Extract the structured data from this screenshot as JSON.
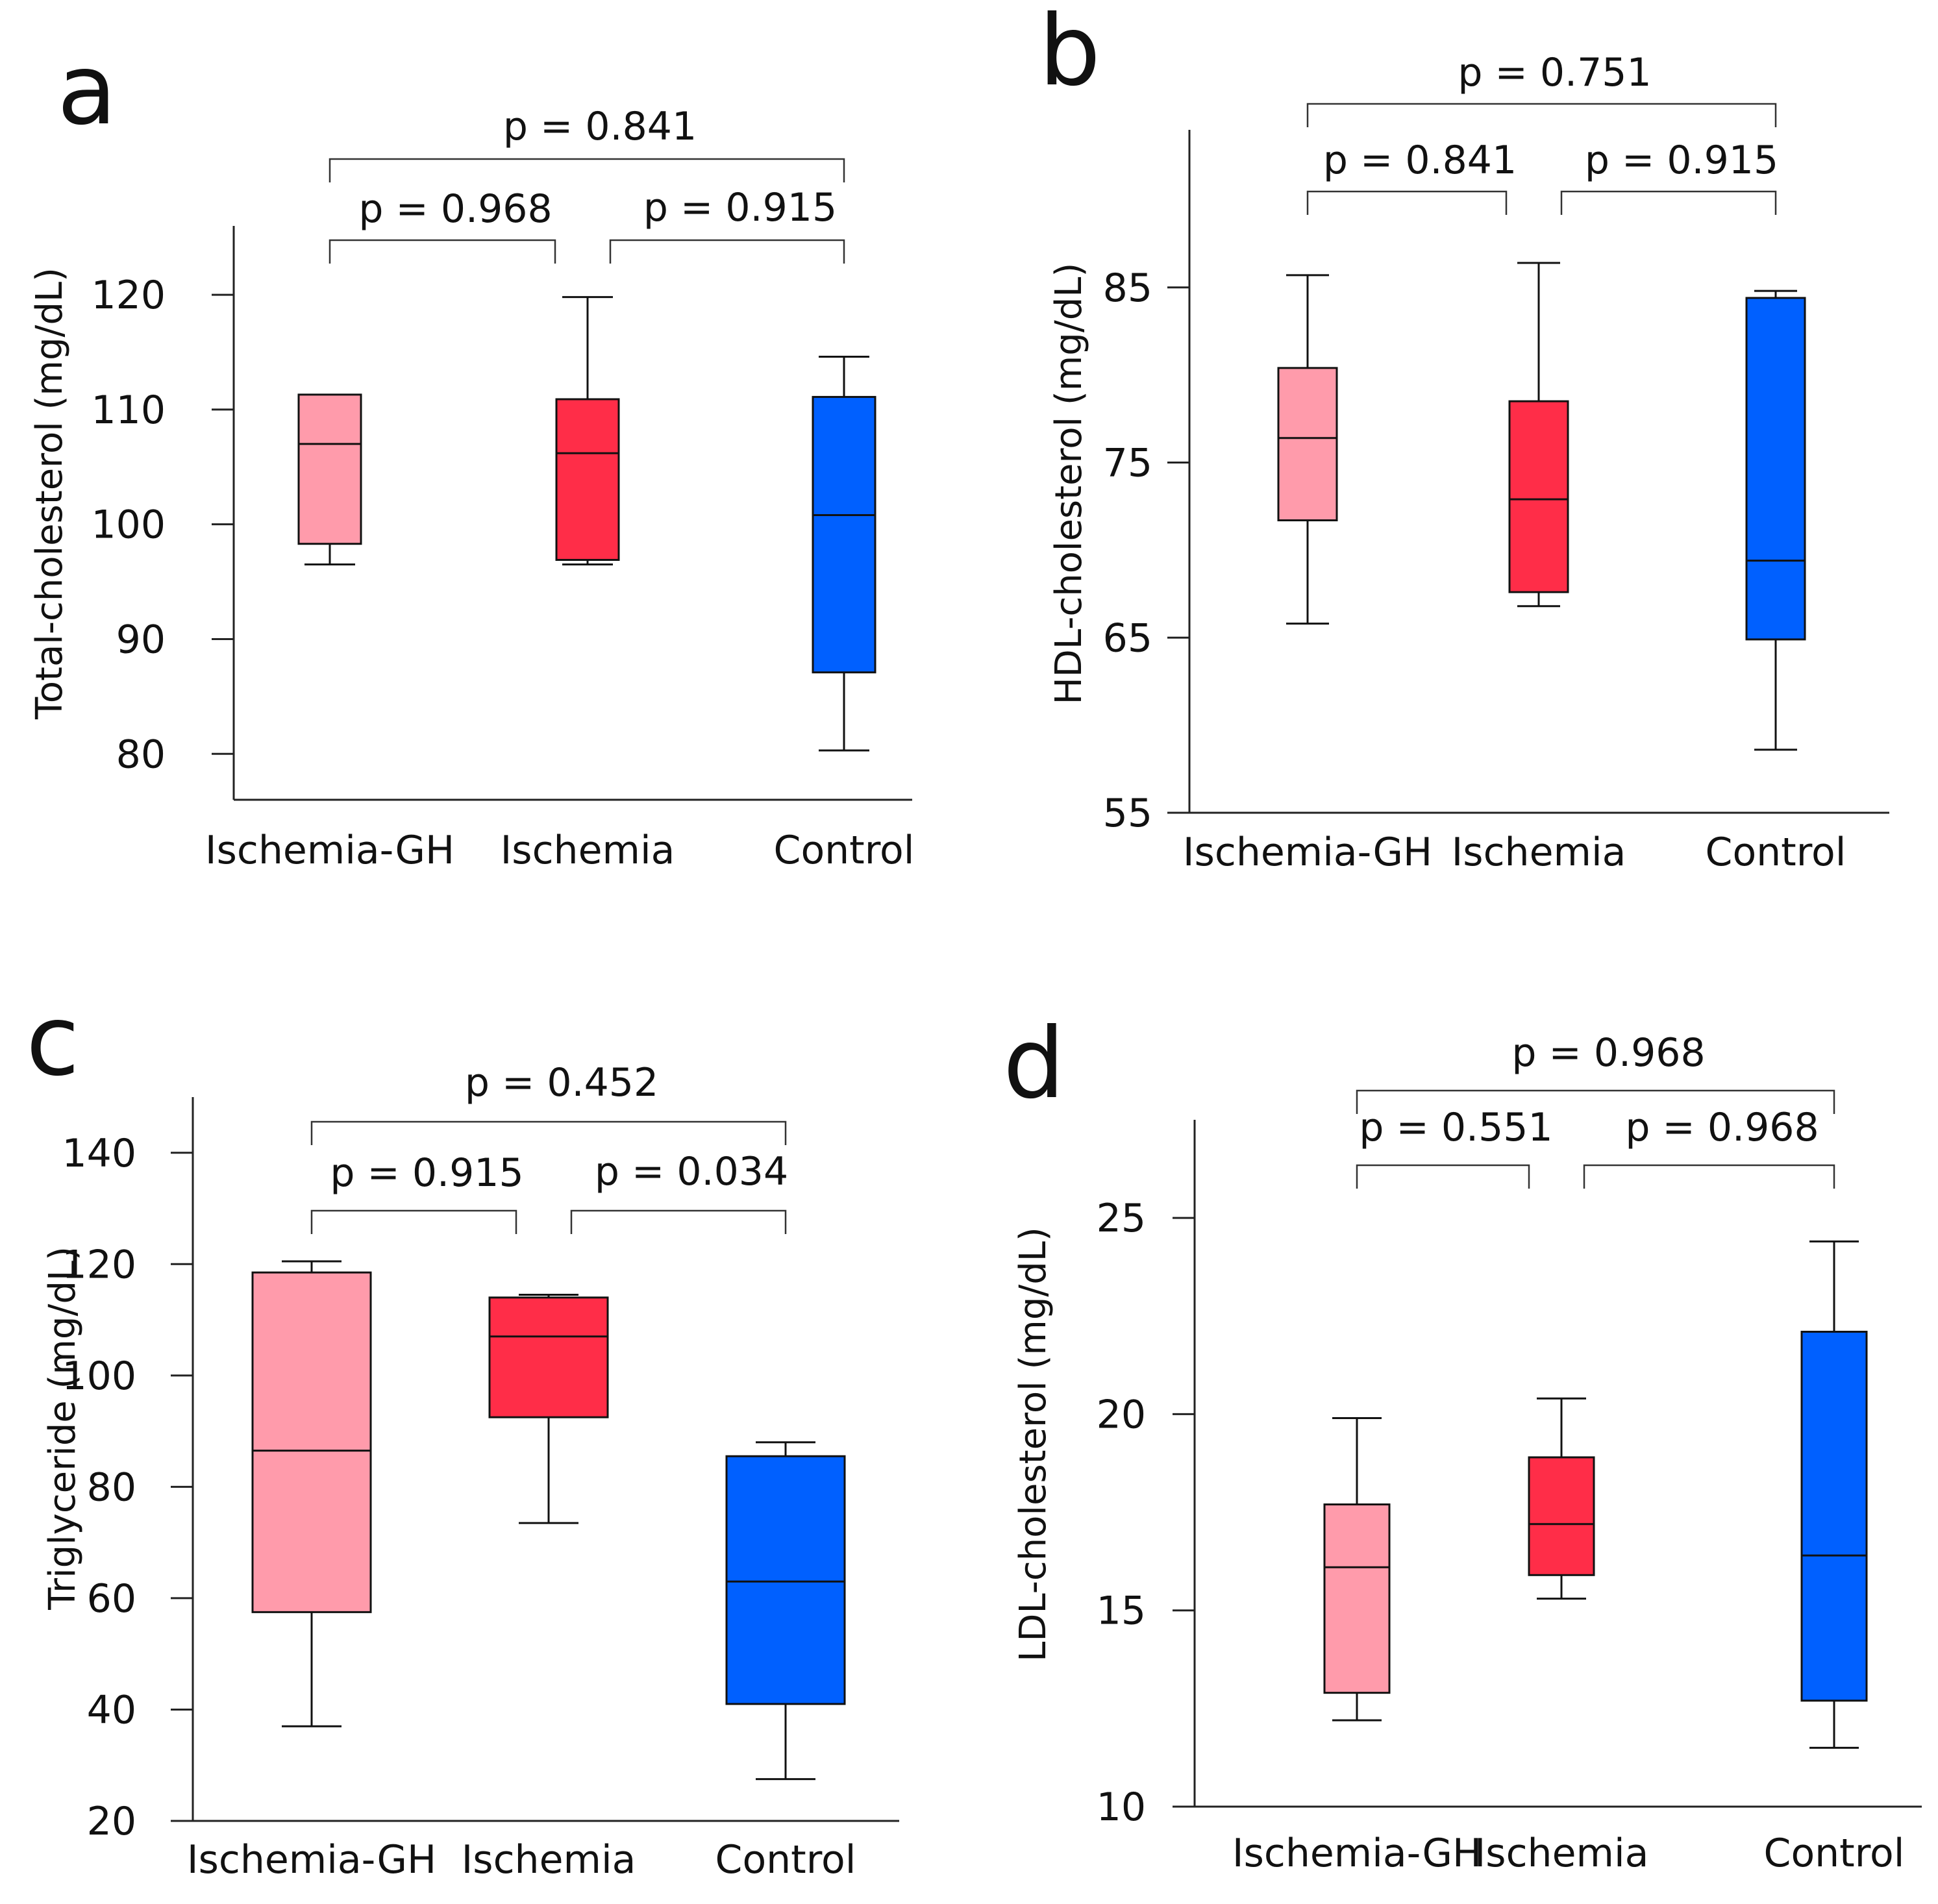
{
  "chart_data": [
    {
      "type": "box",
      "panel_label": "a",
      "ylabel": "Total-cholesterol (mg/dL)",
      "ylim": [
        76,
        128
      ],
      "yticks": [
        80,
        90,
        100,
        110,
        120
      ],
      "categories": [
        "Ischemia-GH",
        "Ischemia",
        "Control"
      ],
      "boxes": [
        {
          "name": "Ischemia-GH",
          "whisker_low": 96.5,
          "q1": 98.3,
          "median": 107,
          "q3": 111.3,
          "whisker_high": null,
          "color": "#FF9BAB"
        },
        {
          "name": "Ischemia",
          "whisker_low": 96.5,
          "q1": 96.9,
          "median": 106.2,
          "q3": 110.9,
          "whisker_high": 119.8,
          "color": "#FF2D48"
        },
        {
          "name": "Control",
          "whisker_low": 80.3,
          "q1": 87.1,
          "median": 100.8,
          "q3": 111.1,
          "whisker_high": 114.6,
          "color": "#0060FF"
        }
      ],
      "comparisons": [
        {
          "from": 0,
          "to": 1,
          "label": "p = 0.968"
        },
        {
          "from": 1,
          "to": 2,
          "label": "p = 0.915"
        },
        {
          "from": 0,
          "to": 2,
          "label": "p = 0.841"
        }
      ]
    },
    {
      "type": "box",
      "panel_label": "b",
      "ylabel": "HDL-cholesterol (mg/dL)",
      "ylim": [
        55,
        94
      ],
      "yticks": [
        55,
        65,
        75,
        85
      ],
      "categories": [
        "Ischemia-GH",
        "Ischemia",
        "Control"
      ],
      "boxes": [
        {
          "name": "Ischemia-GH",
          "whisker_low": 65.8,
          "q1": 71.7,
          "median": 76.4,
          "q3": 80.4,
          "whisker_high": 85.7,
          "color": "#FF9BAB"
        },
        {
          "name": "Ischemia",
          "whisker_low": 66.8,
          "q1": 67.6,
          "median": 72.9,
          "q3": 78.5,
          "whisker_high": 86.4,
          "color": "#FF2D48"
        },
        {
          "name": "Control",
          "whisker_low": 58.6,
          "q1": 64.9,
          "median": 69.4,
          "q3": 84.4,
          "whisker_high": 84.8,
          "color": "#0060FF"
        }
      ],
      "comparisons": [
        {
          "from": 0,
          "to": 1,
          "label": "p = 0.841"
        },
        {
          "from": 1,
          "to": 2,
          "label": "p = 0.915"
        },
        {
          "from": 0,
          "to": 2,
          "label": "p = 0.751"
        }
      ]
    },
    {
      "type": "box",
      "panel_label": "c",
      "ylabel": "Triglyceride (mg/dL)",
      "ylim": [
        20,
        150
      ],
      "yticks": [
        20,
        40,
        60,
        80,
        100,
        120,
        140
      ],
      "categories": [
        "Ischemia-GH",
        "Ischemia",
        "Control"
      ],
      "boxes": [
        {
          "name": "Ischemia-GH",
          "whisker_low": 37,
          "q1": 57.5,
          "median": 86.5,
          "q3": 118.5,
          "whisker_high": 120.5,
          "color": "#FF9BAB"
        },
        {
          "name": "Ischemia",
          "whisker_low": 73.5,
          "q1": 92.5,
          "median": 107,
          "q3": 114,
          "whisker_high": 114.5,
          "color": "#FF2D48"
        },
        {
          "name": "Control",
          "whisker_low": 27.5,
          "q1": 41,
          "median": 63,
          "q3": 85.5,
          "whisker_high": 88,
          "color": "#0060FF"
        }
      ],
      "comparisons": [
        {
          "from": 0,
          "to": 1,
          "label": "p = 0.915"
        },
        {
          "from": 1,
          "to": 2,
          "label": "p = 0.034"
        },
        {
          "from": 0,
          "to": 2,
          "label": "p = 0.452"
        }
      ]
    },
    {
      "type": "box",
      "panel_label": "d",
      "ylabel": "LDL-cholesterol (mg/dL)",
      "ylim": [
        10,
        27.5
      ],
      "yticks": [
        10,
        15,
        20,
        25
      ],
      "categories": [
        "Ischemia-GH",
        "Ischemia",
        "Control"
      ],
      "boxes": [
        {
          "name": "Ischemia-GH",
          "whisker_low": 12.2,
          "q1": 12.9,
          "median": 16.1,
          "q3": 17.7,
          "whisker_high": 19.9,
          "color": "#FF9BAB"
        },
        {
          "name": "Ischemia",
          "whisker_low": 15.3,
          "q1": 15.9,
          "median": 17.2,
          "q3": 18.9,
          "whisker_high": 20.4,
          "color": "#FF2D48"
        },
        {
          "name": "Control",
          "whisker_low": 11.5,
          "q1": 12.7,
          "median": 16.4,
          "q3": 22.1,
          "whisker_high": 24.4,
          "color": "#0060FF"
        }
      ],
      "comparisons": [
        {
          "from": 0,
          "to": 1,
          "label": "p = 0.551"
        },
        {
          "from": 1,
          "to": 2,
          "label": "p = 0.968"
        },
        {
          "from": 0,
          "to": 2,
          "label": "p = 0.968"
        }
      ]
    }
  ]
}
